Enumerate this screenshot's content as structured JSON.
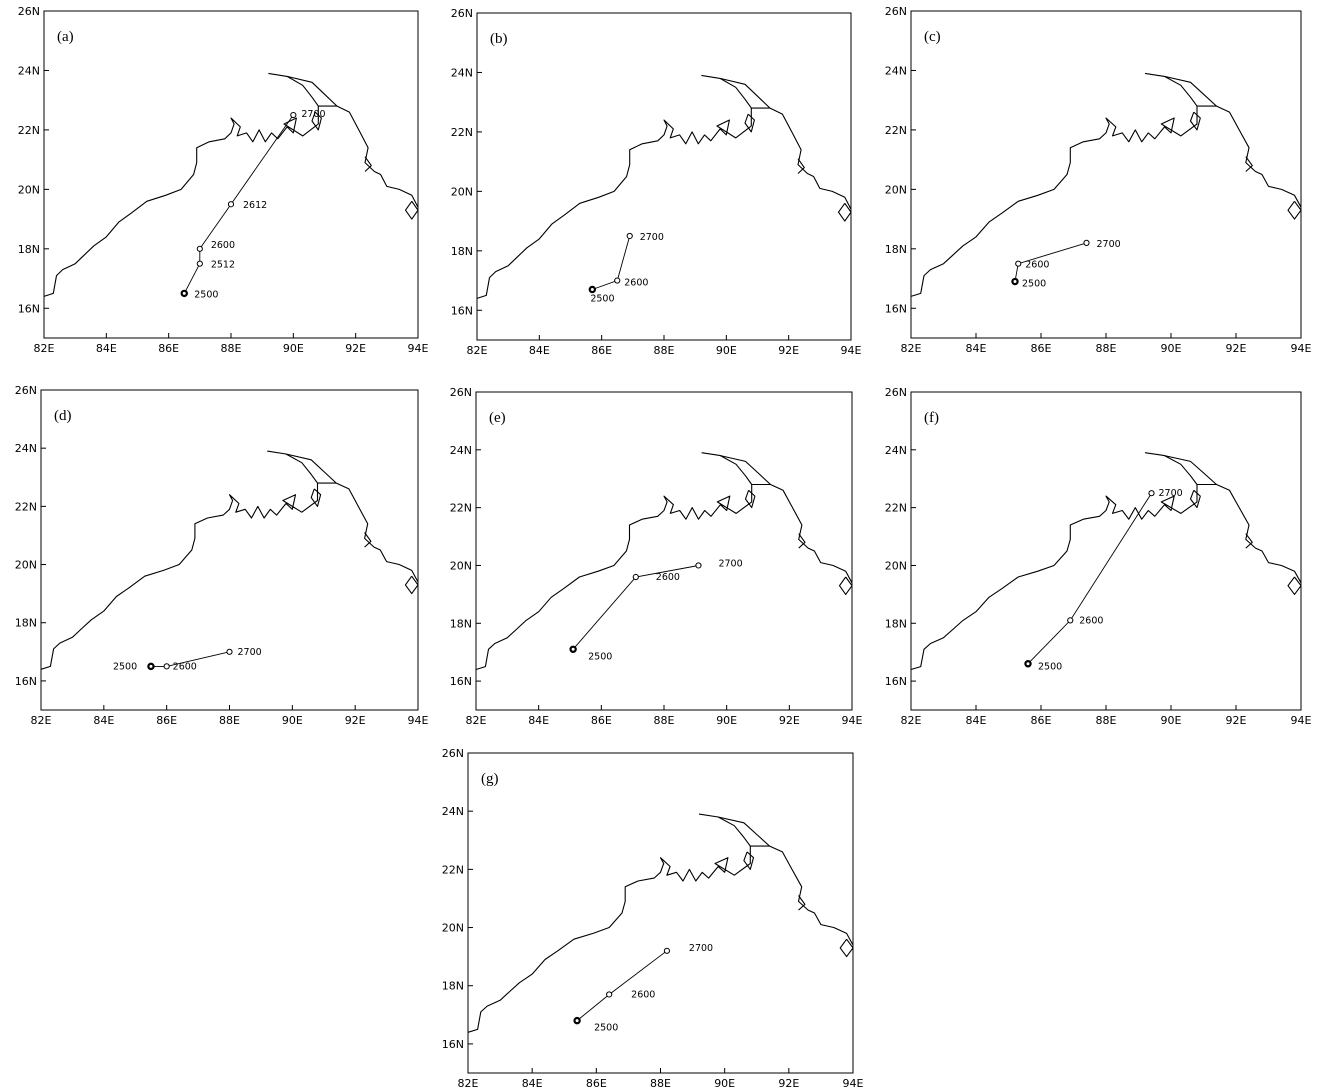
{
  "axes": {
    "x_ticks": [
      {
        "value": 82,
        "label": "82E"
      },
      {
        "value": 84,
        "label": "84E"
      },
      {
        "value": 86,
        "label": "86E"
      },
      {
        "value": 88,
        "label": "88E"
      },
      {
        "value": 90,
        "label": "90E"
      },
      {
        "value": 92,
        "label": "92E"
      },
      {
        "value": 94,
        "label": "94E"
      }
    ],
    "y_ticks": [
      {
        "value": 16,
        "label": "16N"
      },
      {
        "value": 18,
        "label": "18N"
      },
      {
        "value": 20,
        "label": "20N"
      },
      {
        "value": 22,
        "label": "22N"
      },
      {
        "value": 24,
        "label": "24N"
      },
      {
        "value": 26,
        "label": "26N"
      }
    ],
    "lon_range": [
      82,
      94
    ],
    "lat_range": [
      15,
      26
    ]
  },
  "chart_data": [
    {
      "type": "track-map",
      "panel": "(a)",
      "points": [
        {
          "lon": 86.5,
          "lat": 16.5,
          "label": "2500"
        },
        {
          "lon": 87.0,
          "lat": 17.5,
          "label": "2512"
        },
        {
          "lon": 87.0,
          "lat": 18.0,
          "label": "2600"
        },
        {
          "lon": 88.0,
          "lat": 19.5,
          "label": "2612"
        },
        {
          "lon": 90.0,
          "lat": 22.5,
          "label": "2700"
        }
      ]
    },
    {
      "type": "track-map",
      "panel": "(b)",
      "points": [
        {
          "lon": 85.7,
          "lat": 16.7,
          "label": "2500"
        },
        {
          "lon": 86.5,
          "lat": 17.0,
          "label": "2600"
        },
        {
          "lon": 86.9,
          "lat": 18.5,
          "label": "2700"
        }
      ]
    },
    {
      "type": "track-map",
      "panel": "(c)",
      "points": [
        {
          "lon": 85.2,
          "lat": 16.9,
          "label": "2500"
        },
        {
          "lon": 85.3,
          "lat": 17.5,
          "label": "2600"
        },
        {
          "lon": 87.4,
          "lat": 18.2,
          "label": "2700"
        }
      ]
    },
    {
      "type": "track-map",
      "panel": "(d)",
      "points": [
        {
          "lon": 85.5,
          "lat": 16.5,
          "label": "2500"
        },
        {
          "lon": 86.0,
          "lat": 16.5,
          "label": "2600"
        },
        {
          "lon": 88.0,
          "lat": 17.0,
          "label": "2700"
        }
      ]
    },
    {
      "type": "track-map",
      "panel": "(e)",
      "points": [
        {
          "lon": 85.1,
          "lat": 17.1,
          "label": "2500"
        },
        {
          "lon": 87.1,
          "lat": 19.6,
          "label": "2600"
        },
        {
          "lon": 89.1,
          "lat": 20.0,
          "label": "2700"
        }
      ]
    },
    {
      "type": "track-map",
      "panel": "(f)",
      "points": [
        {
          "lon": 85.6,
          "lat": 16.6,
          "label": "2500"
        },
        {
          "lon": 86.9,
          "lat": 18.1,
          "label": "2600"
        },
        {
          "lon": 89.4,
          "lat": 22.5,
          "label": "2700"
        }
      ]
    },
    {
      "type": "track-map",
      "panel": "(g)",
      "points": [
        {
          "lon": 85.4,
          "lat": 16.8,
          "label": "2500"
        },
        {
          "lon": 86.4,
          "lat": 17.7,
          "label": "2600"
        },
        {
          "lon": 88.2,
          "lat": 19.2,
          "label": "2700"
        }
      ]
    }
  ]
}
